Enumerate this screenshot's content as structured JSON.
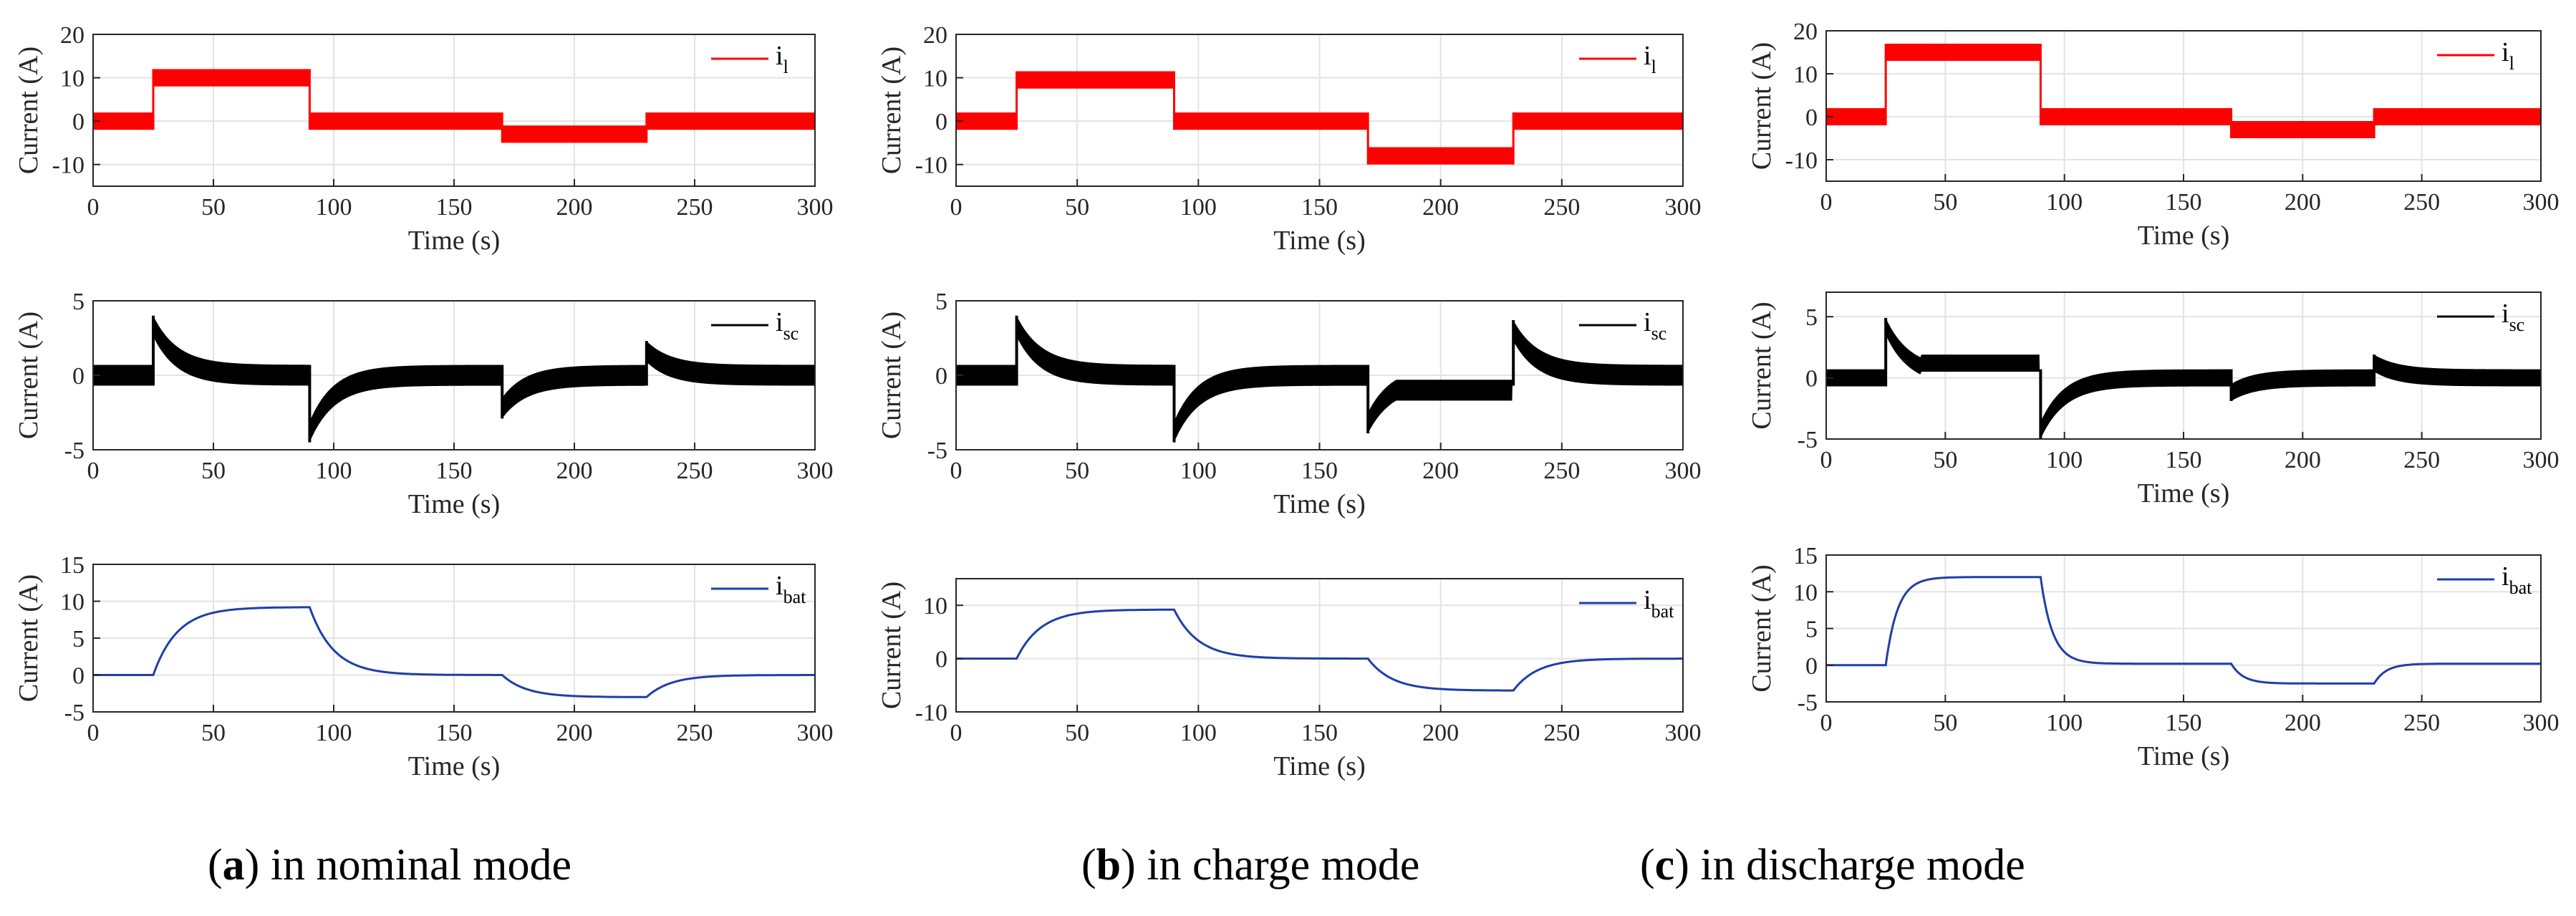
{
  "figure": {
    "captions": [
      {
        "letter": "a",
        "text": "in nominal mode"
      },
      {
        "letter": "b",
        "text": "in charge mode"
      },
      {
        "letter": "c",
        "text": "in discharge mode"
      }
    ]
  },
  "colors": {
    "il": "#ff0000",
    "isc": "#000000",
    "ibat": "#1f3ea8"
  },
  "chart_data": [
    {
      "type": "line",
      "panel": "a",
      "signal": "il",
      "title": "",
      "xlabel": "Time (s)",
      "ylabel": "Current (A)",
      "legend": {
        "main": "i",
        "sub": "l"
      },
      "xlim": [
        0,
        300
      ],
      "ylim": [
        -15,
        20
      ],
      "xticks": [
        0,
        50,
        100,
        150,
        200,
        250,
        300
      ],
      "yticks": [
        -10,
        0,
        10,
        20
      ],
      "color": "#ff0000",
      "levels": [
        [
          0,
          25,
          0
        ],
        [
          25,
          90,
          10
        ],
        [
          90,
          170,
          0
        ],
        [
          170,
          230,
          -3
        ],
        [
          230,
          300,
          0
        ]
      ],
      "ripple": 2
    },
    {
      "type": "line",
      "panel": "a",
      "signal": "isc",
      "title": "",
      "xlabel": "Time (s)",
      "ylabel": "Current (A)",
      "legend": {
        "main": "i",
        "sub": "sc"
      },
      "xlim": [
        0,
        300
      ],
      "ylim": [
        -5,
        5
      ],
      "xticks": [
        0,
        50,
        100,
        150,
        200,
        250,
        300
      ],
      "yticks": [
        -5,
        0,
        5
      ],
      "color": "#000000",
      "offset": 0,
      "decay_tau": 10,
      "events": [
        [
          25,
          3.3
        ],
        [
          90,
          -3.8
        ],
        [
          170,
          -2.2
        ],
        [
          230,
          1.6
        ]
      ],
      "ripple": 0.7
    },
    {
      "type": "line",
      "panel": "a",
      "signal": "ibat",
      "title": "",
      "xlabel": "Time (s)",
      "ylabel": "Current (A)",
      "legend": {
        "main": "i",
        "sub": "bat"
      },
      "xlim": [
        0,
        300
      ],
      "ylim": [
        -5,
        15
      ],
      "xticks": [
        0,
        50,
        100,
        150,
        200,
        250,
        300
      ],
      "yticks": [
        -5,
        0,
        5,
        10,
        15
      ],
      "color": "#1f3ea8",
      "tau": 10,
      "steps": [
        [
          25,
          9.2
        ],
        [
          90,
          0
        ],
        [
          170,
          -3
        ],
        [
          230,
          0
        ]
      ]
    },
    {
      "type": "line",
      "panel": "b",
      "signal": "il",
      "title": "",
      "xlabel": "Time (s)",
      "ylabel": "Current (A)",
      "legend": {
        "main": "i",
        "sub": "l"
      },
      "xlim": [
        0,
        300
      ],
      "ylim": [
        -15,
        20
      ],
      "xticks": [
        0,
        50,
        100,
        150,
        200,
        250,
        300
      ],
      "yticks": [
        -10,
        0,
        10,
        20
      ],
      "color": "#ff0000",
      "levels": [
        [
          0,
          25,
          0
        ],
        [
          25,
          90,
          9.5
        ],
        [
          90,
          170,
          0
        ],
        [
          170,
          230,
          -8
        ],
        [
          230,
          300,
          0
        ]
      ],
      "ripple": 2
    },
    {
      "type": "line",
      "panel": "b",
      "signal": "isc",
      "title": "",
      "xlabel": "Time (s)",
      "ylabel": "Current (A)",
      "legend": {
        "main": "i",
        "sub": "sc"
      },
      "xlim": [
        0,
        300
      ],
      "ylim": [
        -5,
        5
      ],
      "xticks": [
        0,
        50,
        100,
        150,
        200,
        250,
        300
      ],
      "yticks": [
        -5,
        0,
        5
      ],
      "color": "#000000",
      "offset": 0,
      "decay_tau": 10,
      "events": [
        [
          25,
          3.3
        ],
        [
          90,
          -3.8
        ],
        [
          170,
          -3.2
        ],
        [
          230,
          3.0
        ]
      ],
      "ripple": 0.7,
      "plateaus": [
        [
          170,
          230,
          -1.0
        ]
      ]
    },
    {
      "type": "line",
      "panel": "b",
      "signal": "ibat",
      "title": "",
      "xlabel": "Time (s)",
      "ylabel": "Current (A)",
      "legend": {
        "main": "i",
        "sub": "bat"
      },
      "xlim": [
        0,
        300
      ],
      "ylim": [
        -10,
        15
      ],
      "xticks": [
        0,
        50,
        100,
        150,
        200,
        250,
        300
      ],
      "yticks": [
        -10,
        0,
        10
      ],
      "color": "#1f3ea8",
      "tau": 10,
      "steps": [
        [
          25,
          9.2
        ],
        [
          90,
          0
        ],
        [
          170,
          -6
        ],
        [
          230,
          0
        ]
      ],
      "sat_low": -6
    },
    {
      "type": "line",
      "panel": "c",
      "signal": "il",
      "title": "",
      "xlabel": "Time (s)",
      "ylabel": "Current (A)",
      "legend": {
        "main": "i",
        "sub": "l"
      },
      "xlim": [
        0,
        300
      ],
      "ylim": [
        -15,
        20
      ],
      "xticks": [
        0,
        50,
        100,
        150,
        200,
        250,
        300
      ],
      "yticks": [
        -10,
        0,
        10,
        20
      ],
      "color": "#ff0000",
      "levels": [
        [
          0,
          25,
          0
        ],
        [
          25,
          90,
          15
        ],
        [
          90,
          170,
          0
        ],
        [
          170,
          230,
          -3
        ],
        [
          230,
          300,
          0
        ]
      ],
      "ripple": 2
    },
    {
      "type": "line",
      "panel": "c",
      "signal": "isc",
      "title": "",
      "xlabel": "Time (s)",
      "ylabel": "Current (A)",
      "legend": {
        "main": "i",
        "sub": "sc"
      },
      "xlim": [
        0,
        300
      ],
      "ylim": [
        -5,
        7
      ],
      "xticks": [
        0,
        50,
        100,
        150,
        200,
        250,
        300
      ],
      "yticks": [
        -5,
        0,
        5
      ],
      "color": "#000000",
      "offset": 0,
      "decay_tau": 10,
      "events": [
        [
          25,
          4.2
        ],
        [
          90,
          -4.3
        ],
        [
          170,
          -1.2
        ],
        [
          230,
          1.2
        ]
      ],
      "ripple": 0.7,
      "plateaus": [
        [
          40,
          90,
          1.2
        ]
      ]
    },
    {
      "type": "line",
      "panel": "c",
      "signal": "ibat",
      "title": "",
      "xlabel": "Time (s)",
      "ylabel": "Current (A)",
      "legend": {
        "main": "i",
        "sub": "bat"
      },
      "xlim": [
        0,
        300
      ],
      "ylim": [
        -5,
        15
      ],
      "xticks": [
        0,
        50,
        100,
        150,
        200,
        250,
        300
      ],
      "yticks": [
        -5,
        0,
        5,
        10,
        15
      ],
      "color": "#1f3ea8",
      "tau": 5,
      "steps": [
        [
          25,
          12
        ],
        [
          90,
          0.2
        ],
        [
          170,
          -2.5
        ],
        [
          230,
          0.2
        ]
      ],
      "sat_high": 12
    }
  ]
}
